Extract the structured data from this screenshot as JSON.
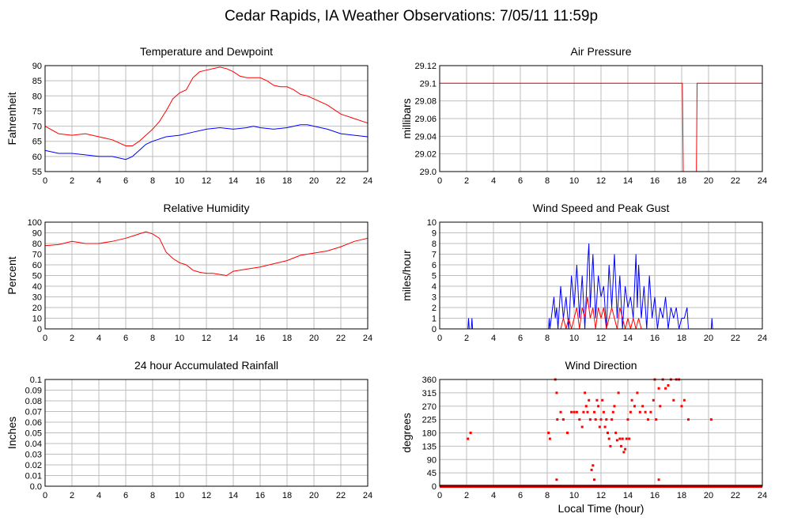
{
  "page_title": "Cedar Rapids, IA Weather Observations: 7/05/11 11:59p",
  "xlabel_bottom": "Local Time (hour)",
  "colors": {
    "red": "#ff0000",
    "blue": "#0000ff",
    "grid": "#bebebe",
    "frame": "#000000"
  },
  "chart_data": [
    {
      "id": "temp",
      "type": "line",
      "title": "Temperature and Dewpoint",
      "xlabel": "",
      "ylabel": "Fahrenheit",
      "xlim": [
        0,
        24
      ],
      "ylim": [
        55,
        90
      ],
      "xticks": [
        "0",
        "2",
        "4",
        "6",
        "8",
        "10",
        "12",
        "14",
        "16",
        "18",
        "20",
        "22",
        "24"
      ],
      "yticks": [
        "55",
        "60",
        "65",
        "70",
        "75",
        "80",
        "85",
        "90"
      ],
      "grid": true,
      "series": [
        {
          "color": "#ff0000",
          "x": [
            0,
            1,
            2,
            3,
            4,
            5,
            6,
            6.5,
            7,
            8,
            8.5,
            9,
            9.5,
            10,
            10.5,
            11,
            11.5,
            12,
            12.5,
            13,
            13.5,
            14,
            14.5,
            15,
            15.5,
            16,
            16.5,
            17,
            17.5,
            18,
            18.5,
            19,
            19.5,
            20,
            21,
            22,
            23,
            24
          ],
          "y": [
            70,
            67.5,
            67,
            67.5,
            66.5,
            65.5,
            63.5,
            63.5,
            65,
            69,
            71.5,
            75,
            79,
            81,
            82,
            86,
            88,
            88.5,
            89,
            89.5,
            89,
            88,
            86.5,
            86,
            86,
            86,
            85,
            83.5,
            83,
            83,
            82,
            80.5,
            80,
            79,
            77,
            74,
            72.5,
            71
          ]
        },
        {
          "color": "#0000ff",
          "x": [
            0,
            1,
            2,
            3,
            4,
            5,
            6,
            6.5,
            7,
            7.5,
            8,
            9,
            10,
            11,
            12,
            13,
            14,
            15,
            15.5,
            16,
            17,
            18,
            19,
            19.5,
            20,
            21,
            22,
            23,
            24
          ],
          "y": [
            62,
            61,
            61,
            60.5,
            60,
            60,
            59,
            60,
            62,
            64,
            65,
            66.5,
            67,
            68,
            69,
            69.5,
            69,
            69.5,
            70,
            69.5,
            69,
            69.5,
            70.5,
            70.5,
            70,
            69,
            67.5,
            67,
            66.5
          ]
        }
      ]
    },
    {
      "id": "pressure",
      "type": "line",
      "title": "Air Pressure",
      "xlabel": "",
      "ylabel": "millibars",
      "xlim": [
        0,
        24
      ],
      "ylim": [
        29.0,
        29.12
      ],
      "xticks": [
        "0",
        "2",
        "4",
        "6",
        "8",
        "10",
        "12",
        "14",
        "16",
        "18",
        "20",
        "22",
        "24"
      ],
      "yticks": [
        "29.0",
        "29.02",
        "29.04",
        "29.06",
        "29.08",
        "29.1",
        "29.12"
      ],
      "grid": true,
      "series": [
        {
          "color": "#ff0000",
          "x": [
            0,
            18.05,
            18.12,
            19.1,
            19.15,
            24
          ],
          "y": [
            29.1,
            29.1,
            29.0,
            29.0,
            29.1,
            29.1
          ]
        }
      ]
    },
    {
      "id": "humidity",
      "type": "line",
      "title": "Relative Humidity",
      "xlabel": "",
      "ylabel": "Percent",
      "xlim": [
        0,
        24
      ],
      "ylim": [
        0,
        100
      ],
      "xticks": [
        "0",
        "2",
        "4",
        "6",
        "8",
        "10",
        "12",
        "14",
        "16",
        "18",
        "20",
        "22",
        "24"
      ],
      "yticks": [
        "0",
        "10",
        "20",
        "30",
        "40",
        "50",
        "60",
        "70",
        "80",
        "90",
        "100"
      ],
      "grid": true,
      "series": [
        {
          "color": "#ff0000",
          "x": [
            0,
            1,
            2,
            3,
            4,
            5,
            6,
            6.5,
            7,
            7.5,
            8,
            8.5,
            9,
            9.5,
            10,
            10.5,
            11,
            11.5,
            12,
            12.5,
            13,
            13.5,
            14,
            15,
            16,
            17,
            18,
            19,
            20,
            21,
            22,
            23,
            24
          ],
          "y": [
            78,
            79,
            82,
            80,
            80,
            82,
            85,
            87,
            89,
            91,
            89,
            85,
            72,
            66,
            62,
            60,
            55,
            53,
            52,
            52,
            51,
            50,
            54,
            56,
            58,
            61,
            64,
            69,
            71,
            73,
            77,
            82,
            85
          ]
        }
      ]
    },
    {
      "id": "wind",
      "type": "line",
      "title": "Wind Speed and Peak Gust",
      "xlabel": "",
      "ylabel": "miles/hour",
      "xlim": [
        0,
        24
      ],
      "ylim": [
        0,
        10
      ],
      "xticks": [
        "0",
        "2",
        "4",
        "6",
        "8",
        "10",
        "12",
        "14",
        "16",
        "18",
        "20",
        "22",
        "24"
      ],
      "yticks": [
        "0",
        "1",
        "2",
        "3",
        "4",
        "5",
        "6",
        "7",
        "8",
        "9",
        "10"
      ],
      "grid": true,
      "series": [
        {
          "color": "#0000ff",
          "x": [
            0,
            2.1,
            2.15,
            2.2,
            2.35,
            2.4,
            2.45,
            8.1,
            8.15,
            8.2,
            8.5,
            8.6,
            8.7,
            8.8,
            9,
            9.2,
            9.4,
            9.6,
            9.8,
            10,
            10.2,
            10.4,
            10.6,
            10.8,
            11,
            11.1,
            11.2,
            11.4,
            11.6,
            11.8,
            12,
            12.2,
            12.4,
            12.6,
            12.8,
            13,
            13.2,
            13.4,
            13.6,
            13.8,
            14,
            14.2,
            14.4,
            14.6,
            14.7,
            14.8,
            15,
            15.2,
            15.4,
            15.6,
            15.8,
            16,
            16.2,
            16.4,
            16.6,
            16.8,
            17,
            17.2,
            17.4,
            17.6,
            17.8,
            18,
            18.2,
            18.4,
            18.5,
            18.6,
            20.2,
            20.25,
            20.3,
            24
          ],
          "y": [
            0,
            0,
            1,
            0,
            0,
            1,
            0,
            0,
            1,
            0,
            3,
            1,
            2,
            0,
            4,
            1,
            3,
            0,
            5,
            2,
            6,
            1,
            5,
            0,
            6,
            8,
            2,
            7,
            1,
            5,
            3,
            4,
            0,
            6,
            2,
            7,
            1,
            5,
            0,
            4,
            2,
            3,
            1,
            7,
            2,
            6,
            1,
            4,
            0,
            5,
            1,
            3,
            0,
            2,
            1,
            3,
            0,
            2,
            1,
            2,
            0,
            1,
            1,
            2,
            0,
            0,
            0,
            1,
            0,
            0
          ]
        },
        {
          "color": "#ff0000",
          "x": [
            0,
            9,
            9.2,
            9.4,
            9.6,
            9.8,
            10,
            10.2,
            10.4,
            10.6,
            10.8,
            11,
            11.2,
            11.4,
            11.6,
            11.8,
            12,
            12.2,
            12.4,
            12.6,
            12.8,
            13,
            13.2,
            13.4,
            13.6,
            13.8,
            14,
            14.2,
            14.4,
            14.6,
            14.8,
            15,
            15.2,
            24
          ],
          "y": [
            0,
            0,
            1,
            0,
            1,
            0,
            1,
            2,
            0,
            2,
            1,
            3,
            1,
            2,
            0,
            2,
            1,
            2,
            0,
            1,
            2,
            1,
            0,
            2,
            1,
            0,
            1,
            0,
            1,
            0,
            1,
            0,
            0,
            0
          ]
        }
      ]
    },
    {
      "id": "rain",
      "type": "line",
      "title": "24 hour Accumulated Rainfall",
      "xlabel": "",
      "ylabel": "Inches",
      "xlim": [
        0,
        24
      ],
      "ylim": [
        0,
        0.1
      ],
      "xticks": [
        "0",
        "2",
        "4",
        "6",
        "8",
        "10",
        "12",
        "14",
        "16",
        "18",
        "20",
        "22",
        "24"
      ],
      "yticks": [
        "0.0",
        "0.01",
        "0.02",
        "0.03",
        "0.04",
        "0.05",
        "0.06",
        "0.07",
        "0.08",
        "0.09",
        "0.1"
      ],
      "grid": true,
      "series": [
        {
          "color": "#ff0000",
          "x": [
            0,
            24
          ],
          "y": [
            0,
            0
          ]
        }
      ]
    },
    {
      "id": "direction",
      "type": "scatter",
      "title": "Wind Direction",
      "xlabel": "Local Time (hour)",
      "ylabel": "degrees",
      "xlim": [
        0,
        24
      ],
      "ylim": [
        0,
        360
      ],
      "xticks": [
        "0",
        "2",
        "4",
        "6",
        "8",
        "10",
        "12",
        "14",
        "16",
        "18",
        "20",
        "22",
        "24"
      ],
      "yticks": [
        "0",
        "45",
        "90",
        "135",
        "180",
        "225",
        "270",
        "315",
        "360"
      ],
      "grid": true,
      "baseline": {
        "value": 0,
        "from": 0,
        "to": 24
      },
      "series": [
        {
          "color": "#ff0000",
          "x": [
            2.1,
            2.3,
            8.1,
            8.2,
            8.6,
            8.7,
            8.75,
            9.0,
            9.2,
            9.5,
            9.8,
            10.0,
            10.2,
            10.4,
            10.6,
            10.7,
            10.8,
            10.9,
            11.0,
            11.1,
            11.2,
            11.3,
            11.4,
            11.5,
            11.6,
            11.7,
            11.8,
            11.9,
            12.0,
            12.1,
            12.2,
            12.3,
            12.4,
            12.5,
            12.6,
            12.7,
            12.8,
            12.9,
            13.0,
            13.1,
            13.2,
            13.3,
            13.4,
            13.5,
            13.6,
            13.7,
            13.8,
            13.9,
            14.0,
            14.1,
            14.2,
            14.3,
            14.5,
            14.7,
            14.9,
            15.1,
            15.3,
            15.5,
            15.7,
            15.9,
            16.0,
            16.1,
            16.3,
            16.4,
            16.6,
            16.8,
            17.0,
            17.2,
            17.4,
            17.6,
            17.8,
            18.0,
            18.2,
            18.5,
            20.2
          ],
          "y": [
            160,
            180,
            180,
            160,
            360,
            315,
            225,
            250,
            225,
            180,
            250,
            250,
            250,
            225,
            200,
            250,
            315,
            270,
            250,
            290,
            225,
            55,
            70,
            250,
            225,
            290,
            270,
            200,
            225,
            290,
            250,
            200,
            225,
            180,
            160,
            135,
            225,
            250,
            270,
            180,
            155,
            315,
            160,
            135,
            160,
            115,
            125,
            160,
            225,
            160,
            250,
            290,
            270,
            315,
            250,
            270,
            250,
            225,
            250,
            290,
            360,
            225,
            330,
            270,
            360,
            330,
            340,
            360,
            290,
            360,
            360,
            270,
            290,
            225,
            225
          ]
        },
        {
          "color": "#ff0000",
          "x": [
            8.7,
            11.5,
            16.3
          ],
          "y": [
            22,
            22,
            22
          ]
        }
      ]
    }
  ]
}
